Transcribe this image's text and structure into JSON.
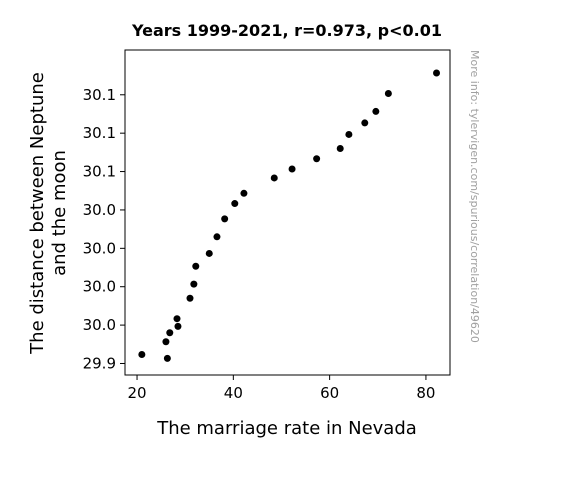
{
  "chart_data": {
    "type": "scatter",
    "title": "Years 1999-2021, r=0.973, p<0.01",
    "xlabel": "The marriage rate in Nevada",
    "ylabel_lines": [
      "The distance between Neptune",
      "and the moon"
    ],
    "watermark": "More info: tylervigen.com/spurious/correlation/49620",
    "xlim": [
      17.5,
      85.0
    ],
    "ylim": [
      29.891,
      30.145
    ],
    "x_ticks": [
      20,
      40,
      60,
      80
    ],
    "x_tick_labels": [
      "20",
      "40",
      "60",
      "80"
    ],
    "y_ticks": [
      29.9,
      29.93,
      29.96,
      29.99,
      30.02,
      30.05,
      30.08,
      30.11
    ],
    "y_tick_labels": [
      "29.9",
      "30.0",
      "30.0",
      "30.0",
      "30.0",
      "30.1",
      "30.1",
      "30.1"
    ],
    "grid": false,
    "point_color": "#000000",
    "points": [
      {
        "x": 21.0,
        "y": 29.907
      },
      {
        "x": 26.0,
        "y": 29.917
      },
      {
        "x": 26.3,
        "y": 29.904
      },
      {
        "x": 26.8,
        "y": 29.924
      },
      {
        "x": 28.3,
        "y": 29.935
      },
      {
        "x": 28.5,
        "y": 29.929
      },
      {
        "x": 31.0,
        "y": 29.951
      },
      {
        "x": 31.8,
        "y": 29.962
      },
      {
        "x": 32.2,
        "y": 29.976
      },
      {
        "x": 35.0,
        "y": 29.986
      },
      {
        "x": 36.6,
        "y": 29.999
      },
      {
        "x": 38.2,
        "y": 30.013
      },
      {
        "x": 40.3,
        "y": 30.025
      },
      {
        "x": 42.2,
        "y": 30.033
      },
      {
        "x": 48.5,
        "y": 30.045
      },
      {
        "x": 52.2,
        "y": 30.052
      },
      {
        "x": 57.3,
        "y": 30.06
      },
      {
        "x": 62.2,
        "y": 30.068
      },
      {
        "x": 64.0,
        "y": 30.079
      },
      {
        "x": 67.3,
        "y": 30.088
      },
      {
        "x": 69.6,
        "y": 30.097
      },
      {
        "x": 72.2,
        "y": 30.111
      },
      {
        "x": 82.2,
        "y": 30.127
      }
    ]
  }
}
